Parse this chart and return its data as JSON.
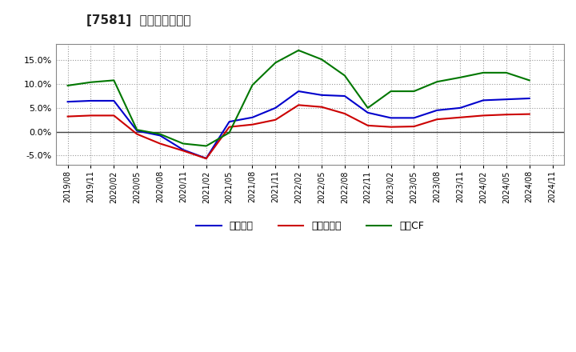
{
  "title": "[7581]  マージンの推移",
  "x_labels": [
    "2019/08",
    "2019/11",
    "2020/02",
    "2020/05",
    "2020/08",
    "2020/11",
    "2021/02",
    "2021/05",
    "2021/08",
    "2021/11",
    "2022/02",
    "2022/05",
    "2022/08",
    "2022/11",
    "2023/02",
    "2023/05",
    "2023/08",
    "2023/11",
    "2024/02",
    "2024/05",
    "2024/08",
    "2024/11"
  ],
  "keijo_rieki": [
    6.3,
    6.5,
    6.5,
    0.2,
    -0.8,
    -3.8,
    -5.6,
    2.1,
    3.0,
    5.0,
    8.5,
    7.7,
    7.5,
    4.0,
    2.9,
    2.9,
    4.5,
    5.0,
    6.6,
    6.8,
    7.0,
    null
  ],
  "touki_junrieki": [
    3.2,
    3.4,
    3.4,
    -0.5,
    -2.5,
    -4.0,
    -5.65,
    1.0,
    1.5,
    2.5,
    5.6,
    5.2,
    3.8,
    1.3,
    1.0,
    1.1,
    2.6,
    3.0,
    3.4,
    3.6,
    3.7,
    null
  ],
  "eigyo_cf": [
    9.7,
    10.4,
    10.8,
    0.4,
    -0.5,
    -2.5,
    -3.0,
    -0.2,
    9.8,
    14.5,
    17.1,
    15.2,
    11.8,
    5.0,
    8.5,
    8.5,
    10.5,
    11.4,
    12.4,
    12.4,
    10.8,
    null
  ],
  "ylim_min": -7.0,
  "ylim_max": 18.5,
  "yticks": [
    -5.0,
    0.0,
    5.0,
    10.0,
    15.0
  ],
  "line_color_keijo": "#0000cc",
  "line_color_touki": "#cc0000",
  "line_color_eigyo": "#007700",
  "bg_color": "#ffffff",
  "plot_bg_color": "#ffffff",
  "grid_color": "#999999",
  "legend_label_keijo": "経常利益",
  "legend_label_touki": "当期純利益",
  "legend_label_eigyo": "営業CF"
}
